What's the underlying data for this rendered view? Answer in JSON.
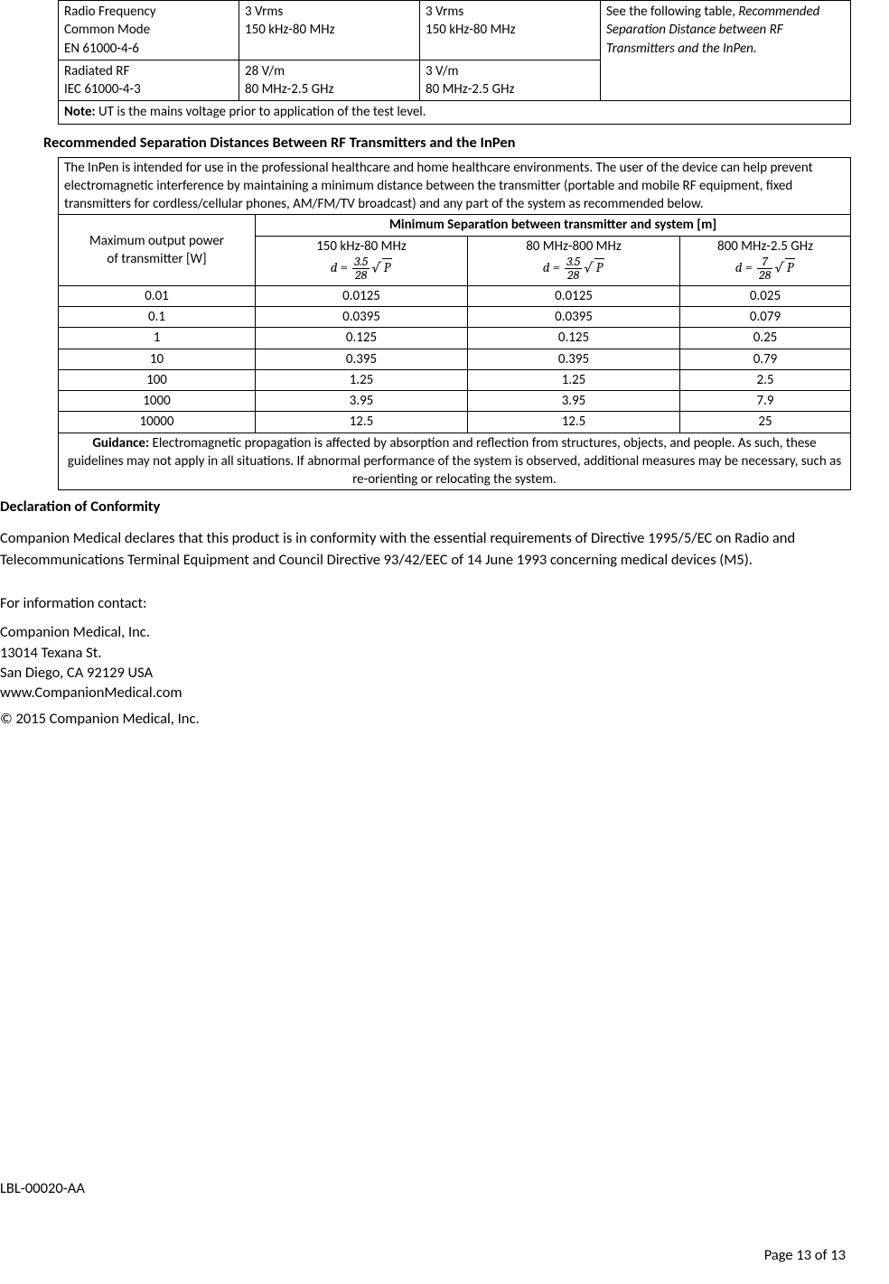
{
  "table1": {
    "rows": [
      {
        "c1": "Radio Frequency\nCommon Mode\nEN 61000-4-6",
        "c2": "3 Vrms\n150 kHz-80 MHz",
        "c3": "3 Vrms\n150 kHz-80 MHz",
        "c4_plain": "See the following table, ",
        "c4_italic": "Recommended Separation Distance between RF Transmitters and the InPen."
      },
      {
        "c1": "Radiated RF\nIEC 61000-4-3",
        "c2": "28 V/m\n80 MHz-2.5 GHz",
        "c3": "3 V/m\n80 MHz-2.5 GHz",
        "c4_plain": "",
        "c4_italic": ""
      }
    ],
    "note_label": "Note:",
    "note_text": "  UT is the mains voltage prior to application of the test level."
  },
  "sec_heading": "Recommended Separation Distances Between RF Transmitters and the InPen",
  "table2": {
    "intro": "The InPen is intended for use in the professional healthcare and home healthcare environments.  The user of the device can help prevent electromagnetic interference by maintaining a minimum distance between the transmitter (portable and mobile RF equipment, fixed transmitters for cordless/cellular phones, AM/FM/TV broadcast) and any part of the system as recommended below.",
    "col1_header_l1": "Maximum output power",
    "col1_header_l2": "of transmitter [W]",
    "span_header": "Minimum Separation between transmitter and system [m]",
    "freq_cols": [
      {
        "label": "150 kHz-80 MHz",
        "num": "3.5",
        "den": "28"
      },
      {
        "label": "80 MHz-800 MHz",
        "num": "3.5",
        "den": "28"
      },
      {
        "label": "800 MHz-2.5 GHz",
        "num": "7",
        "den": "28"
      }
    ],
    "rows": [
      {
        "p": "0.01",
        "v1": "0.0125",
        "v2": "0.0125",
        "v3": "0.025"
      },
      {
        "p": "0.1",
        "v1": "0.0395",
        "v2": "0.0395",
        "v3": "0.079"
      },
      {
        "p": "1",
        "v1": "0.125",
        "v2": "0.125",
        "v3": "0.25"
      },
      {
        "p": "10",
        "v1": "0.395",
        "v2": "0.395",
        "v3": "0.79"
      },
      {
        "p": "100",
        "v1": "1.25",
        "v2": "1.25",
        "v3": "2.5"
      },
      {
        "p": "1000",
        "v1": "3.95",
        "v2": "3.95",
        "v3": "7.9"
      },
      {
        "p": "10000",
        "v1": "12.5",
        "v2": "12.5",
        "v3": "25"
      }
    ],
    "guidance_label": "Guidance:",
    "guidance_text": "  Electromagnetic propagation is affected by absorption and reflection from structures, objects, and people.  As such, these guidelines may not apply in all situations.  If abnormal performance of the system is observed, additional measures may be necessary, such as re-orienting or relocating the system."
  },
  "decl_heading": "Declaration of Conformity",
  "decl_para": "Companion Medical declares that this product is in conformity with the essential requirements of Directive 1995/5/EC on Radio and Telecommunications Terminal Equipment and Council Directive 93/42/EEC of 14 June 1993 concerning medical devices (M5).",
  "contact_label": "For information contact:",
  "address": {
    "l1": "Companion Medical, Inc.",
    "l2": "13014 Texana St.",
    "l3": "San Diego, CA 92129 USA",
    "l4": "www.CompanionMedical.com"
  },
  "copyright": "© 2015 Companion Medical, Inc.",
  "doc_label": "LBL-00020-AA",
  "page_number": "Page 13 of 13"
}
